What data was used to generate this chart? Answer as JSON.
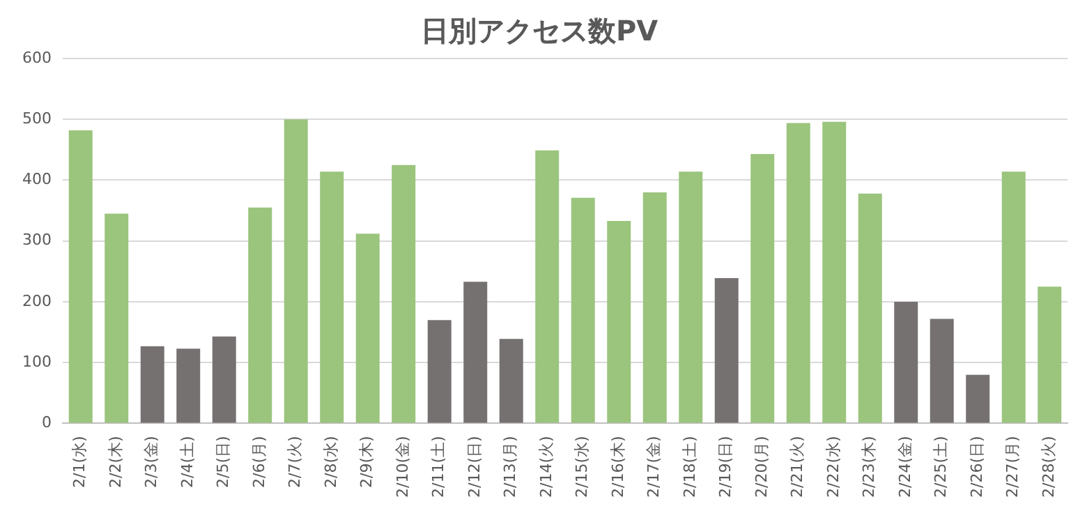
{
  "chart_data": {
    "type": "bar",
    "title": "日別アクセス数PV",
    "categories": [
      "2/1(水)",
      "2/2(木)",
      "2/3(金)",
      "2/4(土)",
      "2/5(日)",
      "2/6(月)",
      "2/7(火)",
      "2/8(水)",
      "2/9(木)",
      "2/10(金)",
      "2/11(土)",
      "2/12(日)",
      "2/13(月)",
      "2/14(火)",
      "2/15(水)",
      "2/16(木)",
      "2/17(金)",
      "2/18(土)",
      "2/19(日)",
      "2/20(月)",
      "2/21(火)",
      "2/22(水)",
      "2/23(木)",
      "2/24(金)",
      "2/25(土)",
      "2/26(日)",
      "2/27(月)",
      "2/28(火)"
    ],
    "values": [
      482,
      345,
      127,
      123,
      143,
      355,
      500,
      414,
      312,
      425,
      170,
      233,
      139,
      449,
      371,
      333,
      380,
      414,
      239,
      443,
      494,
      496,
      378,
      200,
      172,
      80,
      414,
      225
    ],
    "colors": [
      "#9bc47d",
      "#9bc47d",
      "#767171",
      "#767171",
      "#767171",
      "#9bc47d",
      "#9bc47d",
      "#9bc47d",
      "#9bc47d",
      "#9bc47d",
      "#767171",
      "#767171",
      "#767171",
      "#9bc47d",
      "#9bc47d",
      "#9bc47d",
      "#9bc47d",
      "#9bc47d",
      "#767171",
      "#9bc47d",
      "#9bc47d",
      "#9bc47d",
      "#9bc47d",
      "#767171",
      "#767171",
      "#767171",
      "#9bc47d",
      "#9bc47d"
    ],
    "ylim": [
      0,
      600
    ],
    "yticks": [
      0,
      100,
      200,
      300,
      400,
      500,
      600
    ],
    "grid": "y",
    "legend": false
  }
}
